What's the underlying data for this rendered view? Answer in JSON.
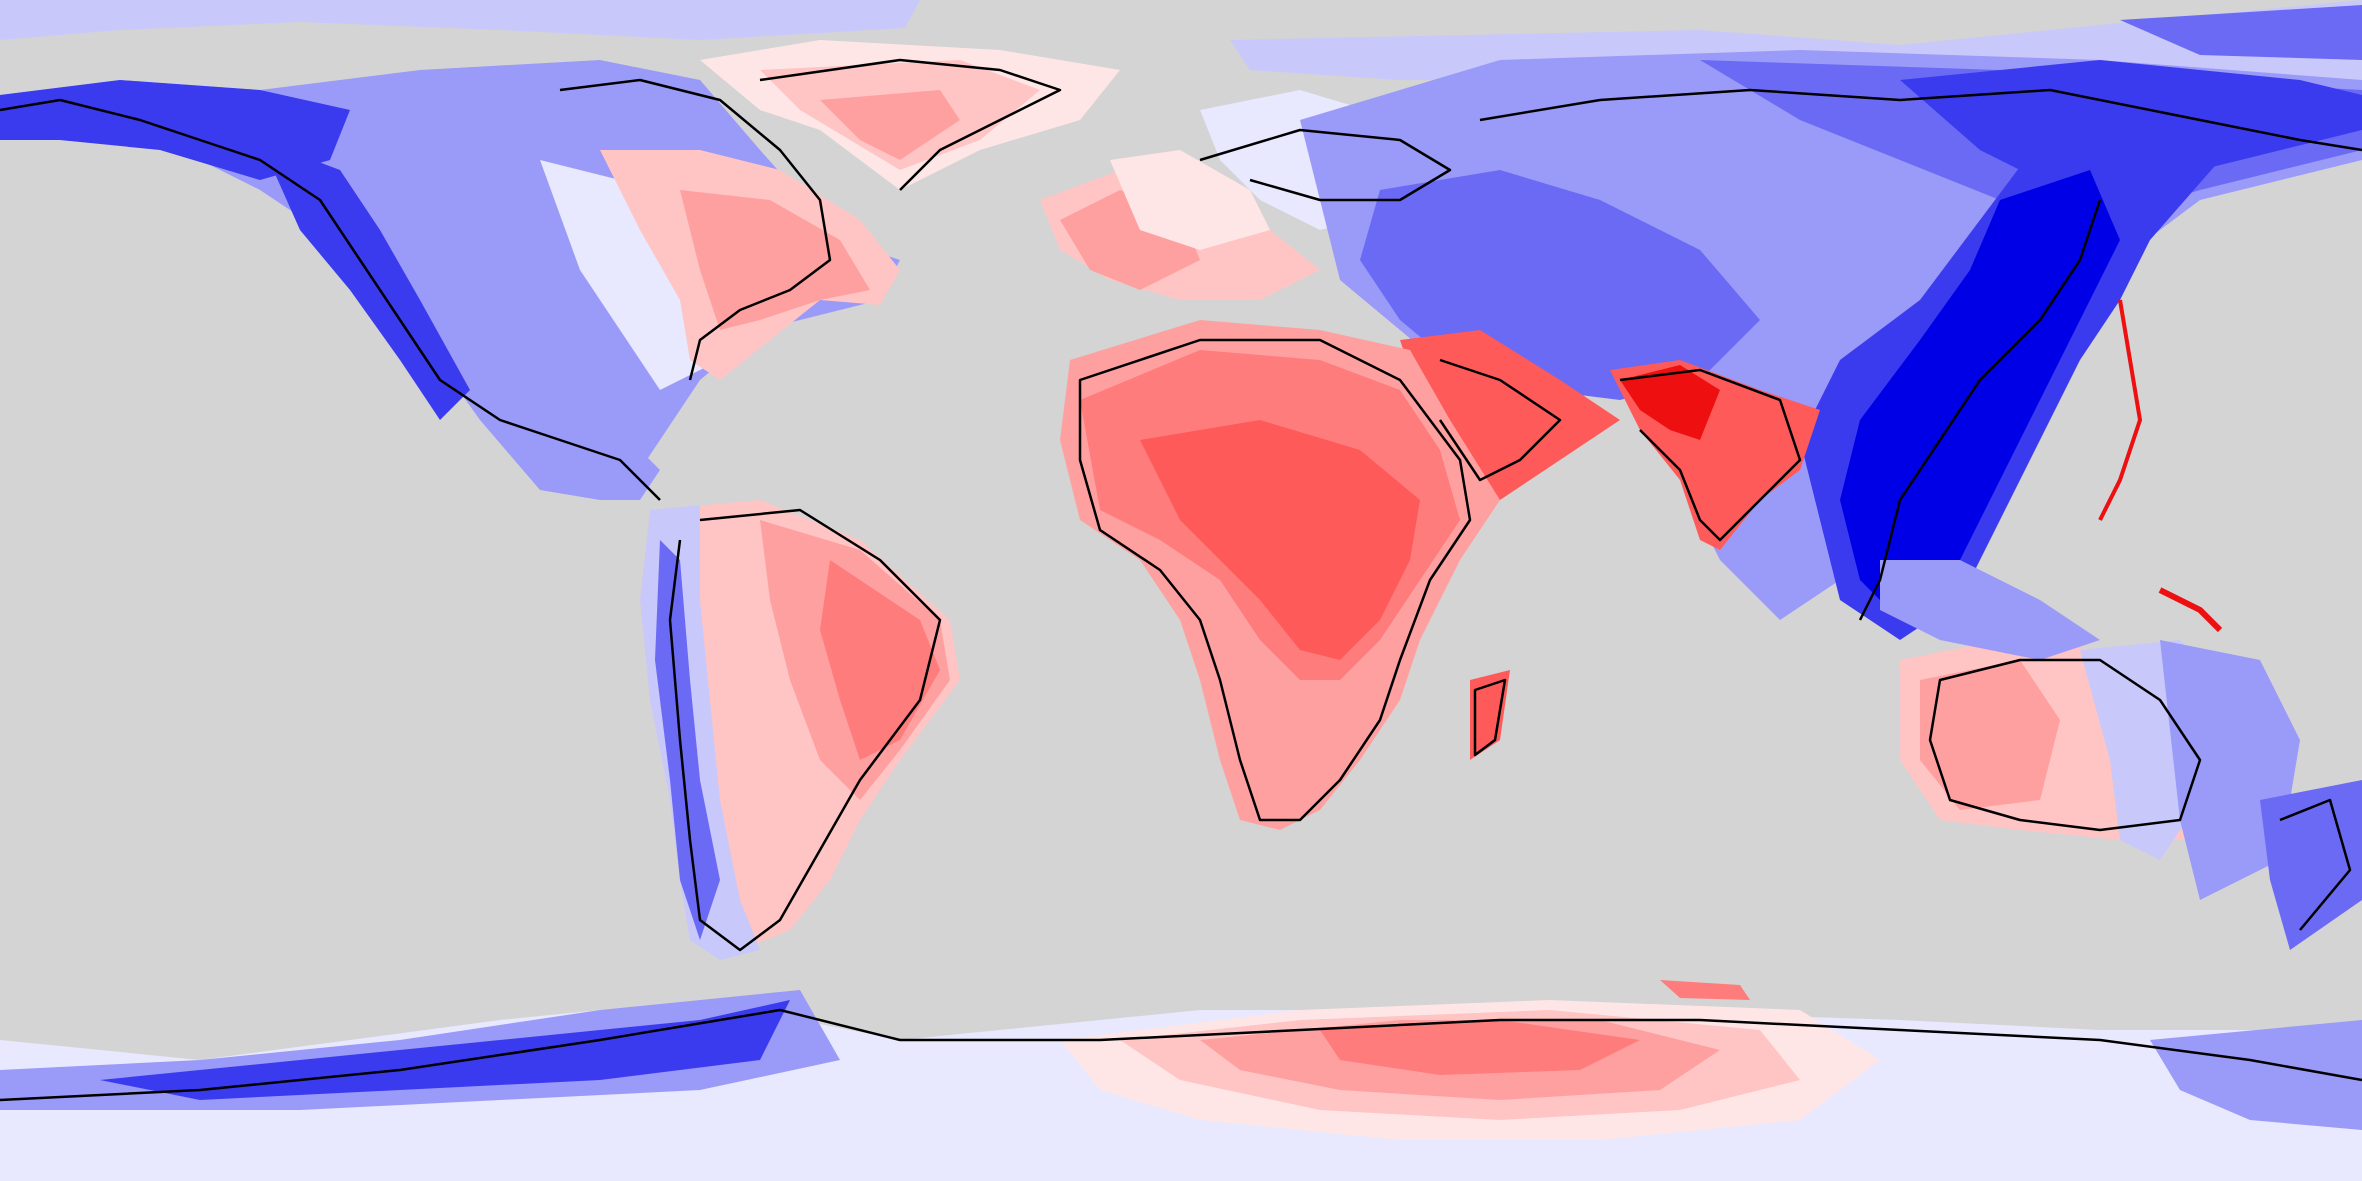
{
  "map": {
    "projection": "equirectangular",
    "longitude_range": [
      -180,
      180
    ],
    "latitude_range": [
      -90,
      90
    ],
    "ocean_color": "#d4d4d4",
    "coastline_color": "#000000",
    "color_scale": {
      "type": "diverging",
      "negative_colors": [
        "#0000e6",
        "#3a3aee",
        "#6a6af4",
        "#9a9af8",
        "#c8c8fb",
        "#e8e8fe"
      ],
      "neutral_color": "#ffffff",
      "positive_colors": [
        "#ffe6e6",
        "#ffc4c4",
        "#ffa0a0",
        "#ff7c7c",
        "#ff5a5a",
        "#ff2a2a",
        "#ee1010"
      ]
    },
    "regions": [
      {
        "name": "alaska-yukon",
        "sign": "negative",
        "level": 5
      },
      {
        "name": "canada-west",
        "sign": "negative",
        "level": 4
      },
      {
        "name": "canada-east",
        "sign": "negative",
        "level": 1
      },
      {
        "name": "us-west-coast",
        "sign": "negative",
        "level": 5
      },
      {
        "name": "us-central",
        "sign": "negative",
        "level": 2
      },
      {
        "name": "us-east",
        "sign": "positive",
        "level": 2
      },
      {
        "name": "central-america",
        "sign": "negative",
        "level": 3
      },
      {
        "name": "greenland",
        "sign": "positive",
        "level": 2
      },
      {
        "name": "andes",
        "sign": "negative",
        "level": 3
      },
      {
        "name": "brazil",
        "sign": "positive",
        "level": 4
      },
      {
        "name": "patagonia",
        "sign": "negative",
        "level": 4
      },
      {
        "name": "western-europe",
        "sign": "positive",
        "level": 3
      },
      {
        "name": "scandinavia",
        "sign": "negative",
        "level": 2
      },
      {
        "name": "russia-west",
        "sign": "negative",
        "level": 2
      },
      {
        "name": "central-asia",
        "sign": "negative",
        "level": 4
      },
      {
        "name": "siberia-east",
        "sign": "negative",
        "level": 5
      },
      {
        "name": "china",
        "sign": "negative",
        "level": 6
      },
      {
        "name": "southeast-asia",
        "sign": "negative",
        "level": 6
      },
      {
        "name": "india",
        "sign": "positive",
        "level": 6
      },
      {
        "name": "africa",
        "sign": "positive",
        "level": 5
      },
      {
        "name": "arabia",
        "sign": "positive",
        "level": 5
      },
      {
        "name": "madagascar",
        "sign": "positive",
        "level": 5
      },
      {
        "name": "australia-west",
        "sign": "positive",
        "level": 3
      },
      {
        "name": "australia-east",
        "sign": "negative",
        "level": 3
      },
      {
        "name": "new-zealand",
        "sign": "negative",
        "level": 4
      },
      {
        "name": "antarctica-west",
        "sign": "negative",
        "level": 4
      },
      {
        "name": "antarctica-east",
        "sign": "positive",
        "level": 4
      }
    ]
  }
}
